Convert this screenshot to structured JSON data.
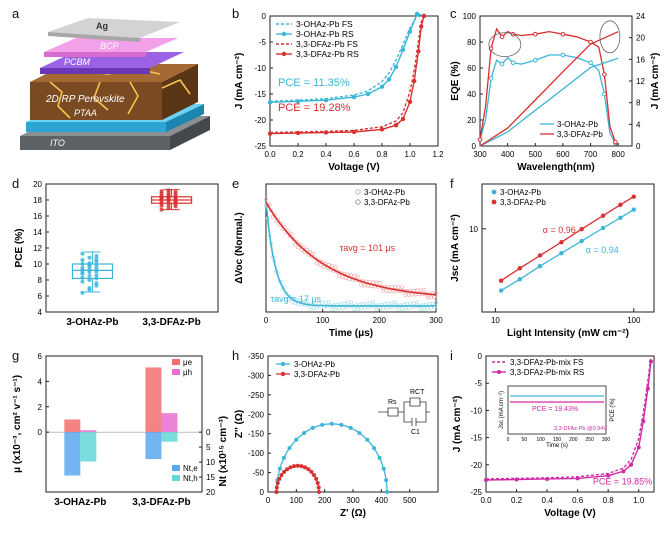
{
  "panel_letters": [
    "a",
    "b",
    "c",
    "d",
    "e",
    "f",
    "g",
    "h",
    "i"
  ],
  "device": {
    "layers": [
      "Ag",
      "BCP",
      "PCBM",
      "2D RP Perovskite",
      "PTAA",
      "ITO"
    ],
    "colors": {
      "Ag": "#c9c9c9",
      "BCP": "#e98be0",
      "PCBM": "#8b4fd6",
      "perovskite": "#7a4a22",
      "PTAA": "#42b5e0",
      "ITO": "#6f7479"
    }
  },
  "chart_data": [
    {
      "panel": "b",
      "type": "line",
      "xlabel": "Voltage (V)",
      "ylabel": "J (mA cm⁻²)",
      "xlim": [
        0.0,
        1.2
      ],
      "ylim": [
        -25,
        0
      ],
      "xticks": [
        "0.0",
        "0.2",
        "0.4",
        "0.6",
        "0.8",
        "1.0",
        "1.2"
      ],
      "yticks": [
        "0",
        "-5",
        "-10",
        "-15",
        "-20",
        "-25"
      ],
      "series": [
        {
          "name": "3-OHAz-Pb FS",
          "color": "#3cb6d8",
          "dashed": true,
          "x": [
            0,
            0.2,
            0.4,
            0.6,
            0.7,
            0.8,
            0.85,
            0.9,
            0.95,
            1.0,
            1.05,
            1.1
          ],
          "y": [
            -16.4,
            -16.2,
            -15.9,
            -15.2,
            -14.4,
            -12.6,
            -11,
            -8.5,
            -5.5,
            -2.3,
            0,
            0
          ]
        },
        {
          "name": "3-OHAz-Pb RS",
          "color": "#3cb6d8",
          "dashed": false,
          "x": [
            0,
            0.2,
            0.4,
            0.6,
            0.7,
            0.8,
            0.85,
            0.9,
            0.95,
            1.0,
            1.05,
            1.1
          ],
          "y": [
            -16.6,
            -16.4,
            -16.2,
            -15.6,
            -15.0,
            -13.6,
            -12.2,
            -9.8,
            -6.5,
            -3.0,
            0.4,
            0
          ]
        },
        {
          "name": "3,3-DFAz-Pb FS",
          "color": "#d93030",
          "dashed": true,
          "x": [
            0,
            0.2,
            0.4,
            0.6,
            0.8,
            0.9,
            0.95,
            1.0,
            1.03,
            1.06,
            1.08,
            1.1
          ],
          "y": [
            -22.4,
            -22.3,
            -22.2,
            -22.0,
            -21.3,
            -20.2,
            -18.6,
            -14.5,
            -10.5,
            -5.0,
            -1.2,
            0
          ]
        },
        {
          "name": "3,3-DFAz-Pb RS",
          "color": "#d93030",
          "dashed": false,
          "x": [
            0,
            0.2,
            0.4,
            0.6,
            0.8,
            0.9,
            0.95,
            1.0,
            1.03,
            1.06,
            1.08,
            1.1
          ],
          "y": [
            -22.6,
            -22.5,
            -22.4,
            -22.3,
            -21.8,
            -21.0,
            -19.8,
            -16.5,
            -12.5,
            -6.8,
            -2.0,
            0
          ]
        }
      ],
      "annotations": [
        "PCE = 11.35%",
        "PCE = 19.28%"
      ]
    },
    {
      "panel": "c",
      "type": "line",
      "xlabel": "Wavelength(nm)",
      "ylabel": "EQE (%)",
      "ylabel2": "J (mA cm⁻²)",
      "xlim": [
        300,
        850
      ],
      "ylim": [
        0,
        100
      ],
      "ylim2": [
        0,
        24
      ],
      "xticks": [
        "300",
        "400",
        "500",
        "600",
        "700",
        "800"
      ],
      "yticks": [
        "0",
        "20",
        "40",
        "60",
        "80",
        "100"
      ],
      "yticks2": [
        "0",
        "4",
        "8",
        "12",
        "16",
        "20",
        "24"
      ],
      "series": [
        {
          "name": "3-OHAz-Pb",
          "color": "#3cb6d8",
          "x": [
            300,
            320,
            340,
            360,
            380,
            400,
            420,
            450,
            500,
            550,
            600,
            650,
            700,
            730,
            750,
            770,
            790,
            800
          ],
          "y": [
            5,
            20,
            52,
            66,
            63,
            68,
            64,
            63,
            66,
            70,
            70,
            68,
            64,
            58,
            40,
            10,
            2,
            0
          ]
        },
        {
          "name": "3,3-DFAz-Pb",
          "color": "#d93030",
          "x": [
            300,
            320,
            340,
            360,
            380,
            400,
            420,
            450,
            500,
            550,
            600,
            650,
            700,
            730,
            750,
            770,
            790,
            800
          ],
          "y": [
            5,
            30,
            75,
            90,
            84,
            88,
            86,
            85,
            86,
            88,
            86,
            84,
            80,
            76,
            55,
            15,
            3,
            0
          ]
        },
        {
          "name": "3-OHAz-Pb (integrated)",
          "color": "#3cb6d8",
          "axis": "right",
          "x": [
            300,
            400,
            500,
            600,
            700,
            800
          ],
          "y": [
            0,
            2.6,
            6.6,
            10.5,
            14.5,
            16.2
          ]
        },
        {
          "name": "3,3-DFAz-Pb (integrated)",
          "color": "#d93030",
          "axis": "right",
          "x": [
            300,
            400,
            500,
            600,
            700,
            800
          ],
          "y": [
            0,
            3.3,
            8.5,
            13.7,
            18.8,
            21.1
          ]
        }
      ]
    },
    {
      "panel": "d",
      "type": "box",
      "ylabel": "PCE (%)",
      "ylim": [
        4,
        20
      ],
      "yticks": [
        "4",
        "6",
        "8",
        "10",
        "12",
        "14",
        "16",
        "18",
        "20"
      ],
      "categories": [
        "3-OHAz-Pb",
        "3,3-DFAz-Pb"
      ],
      "series": [
        {
          "name": "3-OHAz-Pb",
          "color": "#3cb6d8",
          "q1": 8.2,
          "median": 9.2,
          "q3": 10.0,
          "min": 6.5,
          "max": 11.5,
          "points": [
            6.4,
            7.0,
            7.3,
            7.8,
            8.0,
            8.2,
            8.3,
            8.5,
            8.6,
            8.8,
            9.0,
            9.1,
            9.2,
            9.3,
            9.4,
            9.5,
            9.7,
            9.8,
            10.0,
            10.1,
            10.3,
            10.5,
            10.8,
            11.0,
            11.3,
            6.8,
            7.6,
            8.9,
            9.9,
            10.6
          ]
        },
        {
          "name": "3,3-DFAz-Pb",
          "color": "#d93030",
          "q1": 17.6,
          "median": 18.0,
          "q3": 18.4,
          "min": 16.8,
          "max": 19.3,
          "points": [
            16.8,
            17.0,
            17.2,
            17.3,
            17.4,
            17.5,
            17.6,
            17.7,
            17.8,
            17.9,
            18.0,
            18.0,
            18.1,
            18.1,
            18.2,
            18.3,
            18.3,
            18.4,
            18.5,
            18.6,
            18.7,
            18.8,
            18.9,
            19.0,
            19.1,
            19.2,
            17.9,
            18.2,
            18.4,
            17.7
          ]
        }
      ]
    },
    {
      "panel": "e",
      "type": "scatter",
      "xlabel": "Time (μs)",
      "ylabel": "ΔVoc (Normal.)",
      "xlim": [
        0,
        300
      ],
      "ylim": [
        0,
        1.05
      ],
      "xticks": [
        "0",
        "100",
        "200",
        "300"
      ],
      "series": [
        {
          "name": "3-OHAz-Pb",
          "color": "#3cb6d8",
          "tau": 17
        },
        {
          "name": "3,3-DFAz-Pb",
          "color": "#d93030",
          "tau": 101
        }
      ],
      "annotations": [
        "τavg = 101 μs",
        "τavg = 17 μs"
      ]
    },
    {
      "panel": "f",
      "type": "scatter",
      "xlabel": "Light Intensity (mW cm⁻²)",
      "ylabel": "Jsc (mA cm⁻²)",
      "xscale": "log",
      "yscale": "log",
      "xlim": [
        8,
        140
      ],
      "ylim": [
        1.3,
        30
      ],
      "xticks": [
        "10",
        "100"
      ],
      "yticks": [
        "10"
      ],
      "series": [
        {
          "name": "3-OHAz-Pb",
          "color": "#3cb6d8",
          "alpha": 0.94,
          "x": [
            11,
            15,
            21,
            30,
            42,
            60,
            80,
            100
          ],
          "y": [
            2.2,
            2.9,
            4.0,
            5.5,
            7.4,
            10.2,
            13.1,
            16.0
          ]
        },
        {
          "name": "3,3-DFAz-Pb",
          "color": "#d93030",
          "alpha": 0.96,
          "x": [
            11,
            15,
            21,
            30,
            42,
            60,
            80,
            100
          ],
          "y": [
            2.8,
            3.8,
            5.2,
            7.2,
            9.9,
            13.8,
            18.0,
            22.0
          ]
        }
      ],
      "annotations": [
        "α = 0.96",
        "α = 0.94"
      ]
    },
    {
      "panel": "g",
      "type": "bar",
      "ylabel": "μ (x10⁻³, cm² v⁻¹ s⁻¹)",
      "ylabel2": "Nt (x10¹⁵ cm⁻³)",
      "categories": [
        "3-OHAz-Pb",
        "3,3-DFAz-Pb"
      ],
      "ylim": [
        -6,
        6
      ],
      "ylim2": [
        20,
        0
      ],
      "yticks": [
        "0",
        "2",
        "4",
        "6"
      ],
      "yticks2": [
        "0",
        "5",
        "10",
        "15",
        "20"
      ],
      "series": [
        {
          "name": "μe",
          "color": "#f26d6d",
          "values": [
            1.0,
            5.1
          ]
        },
        {
          "name": "μh",
          "color": "#e86fd0",
          "values": [
            0.15,
            1.5
          ]
        },
        {
          "name": "Nt,e",
          "color": "#5aa8ef",
          "values": [
            14.5,
            9.0
          ],
          "axis": "right"
        },
        {
          "name": "Nt,h",
          "color": "#63d6d6",
          "values": [
            9.8,
            3.2
          ],
          "axis": "right"
        }
      ]
    },
    {
      "panel": "h",
      "type": "scatter",
      "xlabel": "Z' (Ω)",
      "ylabel": "Z'' (Ω)",
      "xlim": [
        0,
        600
      ],
      "ylim": [
        0,
        -350
      ],
      "xticks": [
        "0",
        "100",
        "200",
        "300",
        "400",
        "500"
      ],
      "yticks": [
        "0",
        "-50",
        "-100",
        "-150",
        "-200",
        "-250",
        "-300",
        "-350"
      ],
      "series": [
        {
          "name": "3-OHAz-Pb",
          "color": "#3cb6d8",
          "r_start": 30,
          "r_end": 420
        },
        {
          "name": "3,3-DFAz-Pb",
          "color": "#d93030",
          "r_start": 30,
          "r_end": 180
        }
      ],
      "circuit_labels": [
        "Rs",
        "RCT",
        "C1"
      ]
    },
    {
      "panel": "i",
      "type": "line",
      "xlabel": "Voltage (V)",
      "ylabel": "J (mA cm⁻²)",
      "xlim": [
        0.0,
        1.1
      ],
      "ylim": [
        -25,
        0
      ],
      "xticks": [
        "0.0",
        "0.2",
        "0.4",
        "0.6",
        "0.8",
        "1.0"
      ],
      "yticks": [
        "0",
        "-5",
        "-10",
        "-15",
        "-20",
        "-25"
      ],
      "series": [
        {
          "name": "3,3-DFAz-Pb-mix FS",
          "color": "#d02aa6",
          "dashed": true,
          "x": [
            0,
            0.2,
            0.4,
            0.6,
            0.8,
            0.9,
            0.95,
            1.0,
            1.03,
            1.06,
            1.08
          ],
          "y": [
            -22.6,
            -22.5,
            -22.4,
            -22.2,
            -21.6,
            -20.6,
            -19.0,
            -15.2,
            -10.5,
            -4.5,
            0
          ]
        },
        {
          "name": "3,3-DFAz-Pb-mix RS",
          "color": "#d02aa6",
          "dashed": false,
          "x": [
            0,
            0.2,
            0.4,
            0.6,
            0.8,
            0.9,
            0.95,
            1.0,
            1.03,
            1.06,
            1.08
          ],
          "y": [
            -22.8,
            -22.7,
            -22.6,
            -22.5,
            -22.0,
            -21.2,
            -20.0,
            -16.8,
            -12.0,
            -6.0,
            -1.0
          ]
        }
      ],
      "annotations": [
        "PCE = 19.85%"
      ],
      "inset": {
        "xlabel": "Time (s)",
        "ylabel": "Jsc (mA cm⁻²)",
        "ylabel2": "PCE (%)",
        "xticks": [
          "0",
          "50",
          "100",
          "150",
          "200",
          "250",
          "300"
        ],
        "annotations": [
          "PCE = 19.43%",
          "3,3-DFAz-Pb @0.94V"
        ]
      }
    }
  ]
}
